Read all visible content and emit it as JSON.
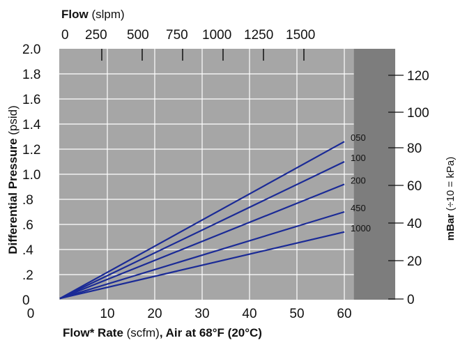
{
  "chart_data": {
    "type": "line",
    "title": "",
    "top_axis": {
      "label_bold": "Flow",
      "label_rest": " (slpm)",
      "ticks": [
        "0",
        "250",
        "500",
        "750",
        "1000",
        "1250",
        "1500"
      ]
    },
    "x_axis": {
      "label_bold1": "Flow* Rate",
      "label_rest": " (scfm)",
      "label_bold2": ", Air at 68°F (20°C)",
      "ticks": [
        10,
        20,
        30,
        40,
        50,
        60
      ],
      "range": [
        0,
        70
      ]
    },
    "y_axis": {
      "label_bold": "Differential Pressure",
      "label_rest": " (psid)",
      "tick_labels": [
        "0",
        ".2",
        ".4",
        ".6",
        ".8",
        "1.0",
        "1.2",
        "1.4",
        "1.6",
        "1.8",
        "2.0"
      ],
      "range": [
        0,
        2.0
      ]
    },
    "right_axis": {
      "label_bold": "mBar",
      "label_rest": " (÷10 = kPa)",
      "ticks": [
        "0",
        "20",
        "40",
        "60",
        "80",
        "100",
        "120"
      ]
    },
    "grid": true,
    "series": [
      {
        "name": "050",
        "x": [
          0,
          60
        ],
        "y": [
          0.01,
          1.26
        ]
      },
      {
        "name": "100",
        "x": [
          0,
          60
        ],
        "y": [
          0.01,
          1.1
        ]
      },
      {
        "name": "200",
        "x": [
          0,
          60
        ],
        "y": [
          0.01,
          0.92
        ]
      },
      {
        "name": "450",
        "x": [
          0,
          60
        ],
        "y": [
          0.01,
          0.7
        ]
      },
      {
        "name": "1000",
        "x": [
          0,
          60
        ],
        "y": [
          0.01,
          0.54
        ]
      }
    ],
    "colors": {
      "plot_bg": "#a6a6a6",
      "panel_bg": "#7d7d7d",
      "grid": "#ffffff",
      "line": "#1a2a96"
    }
  }
}
